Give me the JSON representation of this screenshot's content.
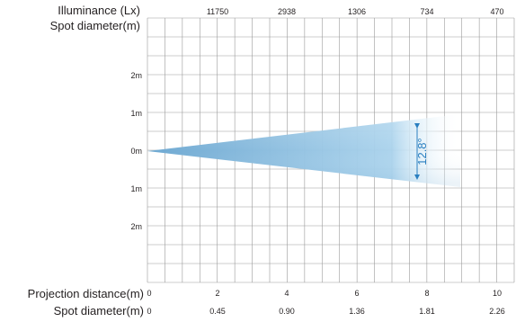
{
  "header": {
    "illuminance_label": "Illuminance (Lx)",
    "spot_label": "Spot diameter(m)"
  },
  "illuminance_values": [
    "11750",
    "2938",
    "1306",
    "734",
    "470"
  ],
  "y_labels": [
    "2m",
    "1m",
    "0m",
    "1m",
    "2m"
  ],
  "footer": {
    "distance_label": "Projection distance(m)",
    "spot_label": "Spot diameter(m)"
  },
  "distance_values": [
    "0",
    "2",
    "4",
    "6",
    "8",
    "10"
  ],
  "spot_values": [
    "0",
    "0.45",
    "0.90",
    "1.36",
    "1.81",
    "2.26"
  ],
  "beam": {
    "angle_label": "12.8°",
    "color_dark": "#7fb6d8",
    "color_light": "#dceef8",
    "grid_color": "#9a9a9a",
    "annotation_color": "#2a7fc0"
  }
}
